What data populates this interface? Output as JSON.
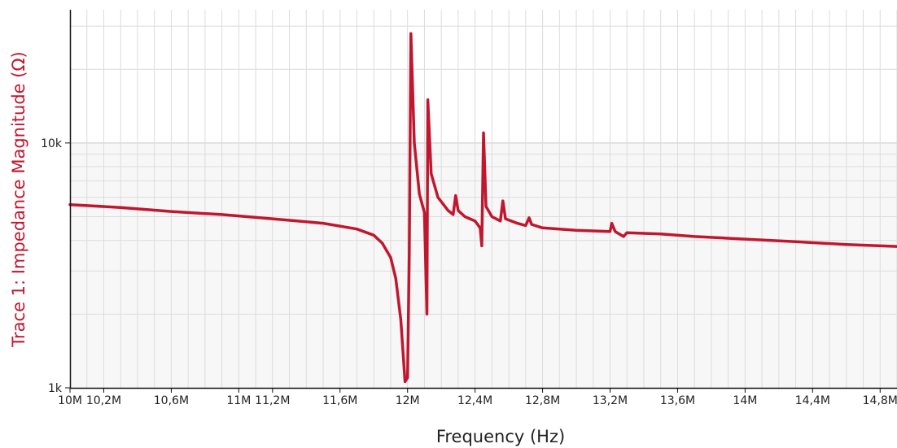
{
  "chart_data": {
    "type": "line",
    "title": "",
    "xlabel": "Frequency (Hz)",
    "ylabel": "Trace 1: Impedance Magnitude (Ω)",
    "y_scale": "log",
    "xlim": [
      10000000,
      14900000
    ],
    "ylim": [
      1000,
      35000
    ],
    "grid": true,
    "legend": "none",
    "x_ticks": [
      {
        "value": 10000000,
        "label": "10M"
      },
      {
        "value": 10200000,
        "label": "10,2M"
      },
      {
        "value": 10600000,
        "label": "10,6M"
      },
      {
        "value": 11000000,
        "label": "11M"
      },
      {
        "value": 11200000,
        "label": "11,2M"
      },
      {
        "value": 11600000,
        "label": "11,6M"
      },
      {
        "value": 12000000,
        "label": "12M"
      },
      {
        "value": 12400000,
        "label": "12,4M"
      },
      {
        "value": 12800000,
        "label": "12,8M"
      },
      {
        "value": 13200000,
        "label": "13,2M"
      },
      {
        "value": 13600000,
        "label": "13,6M"
      },
      {
        "value": 14000000,
        "label": "14M"
      },
      {
        "value": 14400000,
        "label": "14,4M"
      },
      {
        "value": 14800000,
        "label": "14,8M"
      }
    ],
    "y_ticks": [
      {
        "value": 1000,
        "label": "1k"
      },
      {
        "value": 10000,
        "label": "10k"
      }
    ],
    "series": [
      {
        "color": "#c0172f",
        "points": [
          [
            10000000,
            5600
          ],
          [
            10300000,
            5450
          ],
          [
            10600000,
            5250
          ],
          [
            10900000,
            5100
          ],
          [
            11200000,
            4900
          ],
          [
            11500000,
            4700
          ],
          [
            11700000,
            4450
          ],
          [
            11800000,
            4200
          ],
          [
            11850000,
            3900
          ],
          [
            11900000,
            3400
          ],
          [
            11930000,
            2800
          ],
          [
            11960000,
            1900
          ],
          [
            11985000,
            1060
          ],
          [
            12000000,
            1100
          ],
          [
            12010000,
            3500
          ],
          [
            12020000,
            28000
          ],
          [
            12040000,
            10000
          ],
          [
            12070000,
            6200
          ],
          [
            12100000,
            5200
          ],
          [
            12115000,
            2000
          ],
          [
            12120000,
            15000
          ],
          [
            12140000,
            7500
          ],
          [
            12180000,
            6000
          ],
          [
            12240000,
            5300
          ],
          [
            12270000,
            5100
          ],
          [
            12285000,
            6100
          ],
          [
            12300000,
            5300
          ],
          [
            12340000,
            5000
          ],
          [
            12400000,
            4800
          ],
          [
            12430000,
            4500
          ],
          [
            12440000,
            3800
          ],
          [
            12450000,
            11000
          ],
          [
            12465000,
            5500
          ],
          [
            12500000,
            5000
          ],
          [
            12550000,
            4800
          ],
          [
            12565000,
            5800
          ],
          [
            12580000,
            4900
          ],
          [
            12650000,
            4700
          ],
          [
            12700000,
            4600
          ],
          [
            12720000,
            4950
          ],
          [
            12735000,
            4650
          ],
          [
            12800000,
            4500
          ],
          [
            13000000,
            4400
          ],
          [
            13200000,
            4350
          ],
          [
            13210000,
            4700
          ],
          [
            13230000,
            4350
          ],
          [
            13280000,
            4150
          ],
          [
            13300000,
            4300
          ],
          [
            13500000,
            4250
          ],
          [
            13700000,
            4150
          ],
          [
            14000000,
            4050
          ],
          [
            14300000,
            3950
          ],
          [
            14600000,
            3850
          ],
          [
            14900000,
            3780
          ]
        ]
      }
    ]
  }
}
